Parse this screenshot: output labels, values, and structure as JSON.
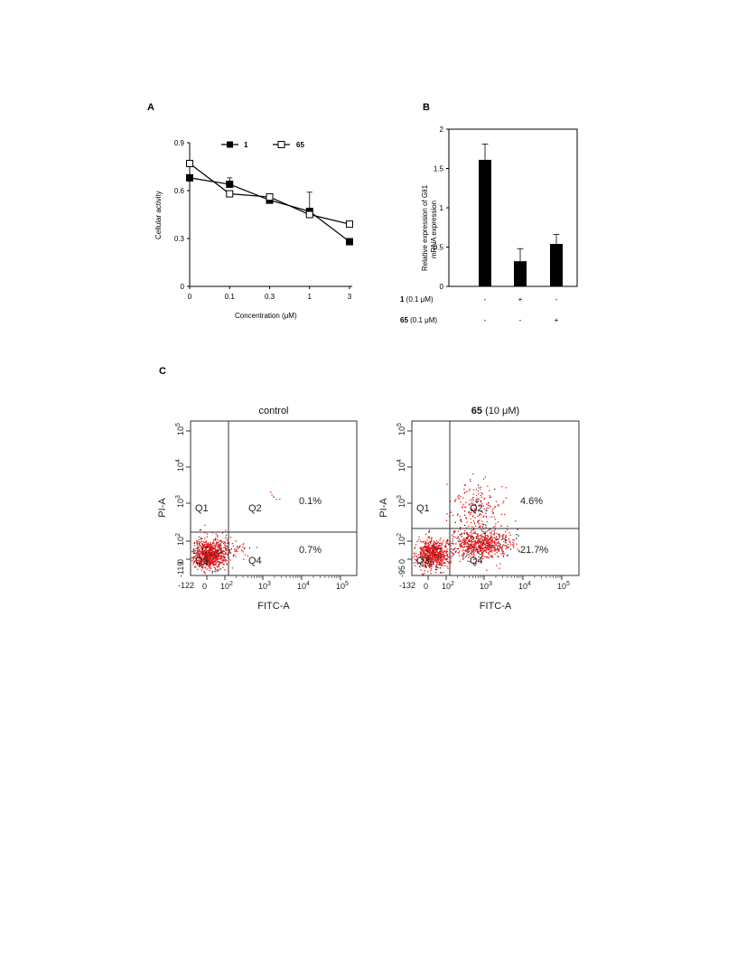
{
  "panels": {
    "a": "A",
    "b": "B",
    "c": "C"
  },
  "chart_data": [
    {
      "type": "line",
      "panel": "A",
      "title": "",
      "xlabel": "Concentration (μM)",
      "ylabel": "Cellular activity",
      "categories": [
        "0",
        "0.1",
        "0.3",
        "1",
        "3"
      ],
      "yticks": [
        "0",
        "0.3",
        "0.6",
        "0.9"
      ],
      "ylim": [
        0,
        0.9
      ],
      "grid": false,
      "legend_position": "top",
      "series": [
        {
          "name": "1",
          "marker": "filled-square",
          "values": [
            0.68,
            0.64,
            0.54,
            0.47,
            0.28
          ],
          "errors": [
            0,
            0.04,
            0,
            0.12,
            0
          ]
        },
        {
          "name": "65",
          "marker": "open-square",
          "values": [
            0.77,
            0.58,
            0.56,
            0.45,
            0.39
          ],
          "errors": [
            0,
            0,
            0,
            0,
            0
          ]
        }
      ]
    },
    {
      "type": "bar",
      "panel": "B",
      "title": "",
      "xlabel": "",
      "ylabel_line1": "Relative expression of Gli1",
      "ylabel_line2": "mRNA expression",
      "ylim": [
        0,
        2
      ],
      "yticks": [
        "0",
        "0.5",
        "1",
        "1.5",
        "2"
      ],
      "grid": false,
      "values": [
        1.61,
        0.32,
        0.54
      ],
      "errors": [
        0.2,
        0.16,
        0.12
      ],
      "treatment_rows": [
        {
          "label_bold": "1",
          "label_rest": " (0.1 μM)",
          "signs": [
            "-",
            "+",
            "-"
          ]
        },
        {
          "label_bold": "65",
          "label_rest": " (0.1 μM)",
          "signs": [
            "-",
            "-",
            "+"
          ]
        }
      ]
    },
    {
      "type": "scatter",
      "panel": "C",
      "subtype": "flow-cytometry",
      "plots": [
        {
          "title_bold": "",
          "title_rest": "control",
          "xlabel": "FITC-A",
          "ylabel": "PI-A",
          "x_min_label": "-122",
          "y_min_label": "-119",
          "quadrants": [
            "Q1",
            "Q2",
            "Q3",
            "Q4"
          ],
          "percents": {
            "Q2": "0.1%",
            "Q4": "0.7%"
          }
        },
        {
          "title_bold": "65",
          "title_rest": " (10 μM)",
          "xlabel": "FITC-A",
          "ylabel": "PI-A",
          "x_min_label": "-132",
          "y_min_label": "-95",
          "quadrants": [
            "Q1",
            "Q2",
            "Q3",
            "Q4"
          ],
          "percents": {
            "Q2": "4.6%",
            "Q4": "21.7%"
          }
        }
      ],
      "log_ticks": [
        "0",
        "10",
        "10",
        "10",
        "10"
      ],
      "log_exponents": [
        "",
        "2",
        "3",
        "4",
        "5"
      ],
      "colors": {
        "events": "#e8191c",
        "events_dark": "#222222"
      }
    }
  ]
}
